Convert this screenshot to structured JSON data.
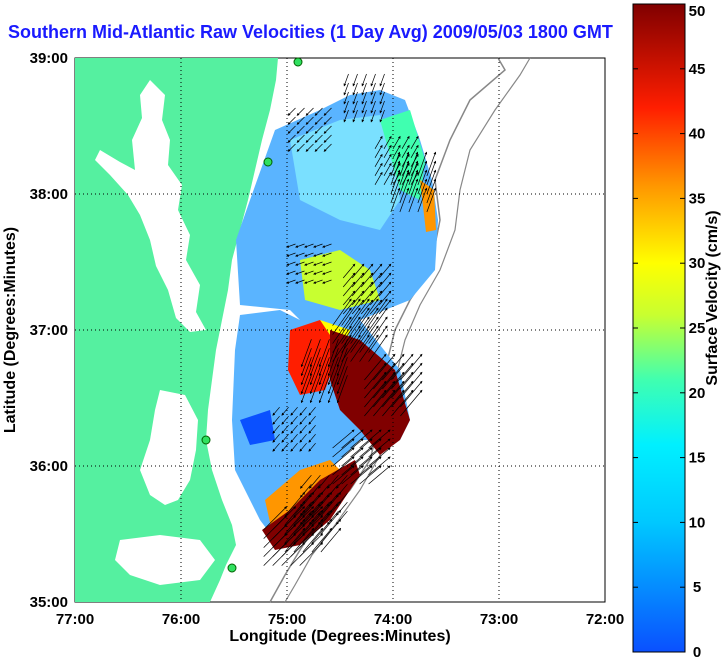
{
  "chart_data": {
    "type": "heatmap",
    "title": "Southern Mid-Atlantic Raw Velocities (1 Day Avg) 2009/05/03 1800 GMT",
    "xlabel": "Longitude (Degrees:Minutes)",
    "ylabel": "Latitude (Degrees:Minutes)",
    "colorbar_label": "Surface Velocity (cm/s)",
    "x_ticks": [
      "77:00",
      "76:00",
      "75:00",
      "74:00",
      "73:00",
      "72:00"
    ],
    "x_values": [
      -77,
      -76,
      -75,
      -74,
      -73,
      -72
    ],
    "y_ticks": [
      "39:00",
      "38:00",
      "37:00",
      "36:00",
      "35:00"
    ],
    "y_values": [
      39,
      38,
      37,
      36,
      35
    ],
    "xlim": [
      -77,
      -72
    ],
    "ylim": [
      35,
      39
    ],
    "colorbar_ticks": [
      50,
      45,
      40,
      35,
      30,
      25,
      20,
      15,
      10,
      5,
      0
    ],
    "colorbar_range": [
      0,
      50
    ],
    "grid": true,
    "colors": {
      "land": "#55f0a0",
      "title": "#1a1aff",
      "coast_line": "#888888"
    },
    "velocity_field": [
      {
        "lon": -74.75,
        "lat": 38.5,
        "speed": 8,
        "direction_deg": 225
      },
      {
        "lon": -74.25,
        "lat": 38.75,
        "speed": 12,
        "direction_deg": 200
      },
      {
        "lon": -74.0,
        "lat": 38.2,
        "speed": 15,
        "direction_deg": 30
      },
      {
        "lon": -73.85,
        "lat": 38.0,
        "speed": 35,
        "direction_deg": 20
      },
      {
        "lon": -74.75,
        "lat": 37.5,
        "speed": 6,
        "direction_deg": 250
      },
      {
        "lon": -74.3,
        "lat": 37.25,
        "speed": 22,
        "direction_deg": 40
      },
      {
        "lon": -74.4,
        "lat": 36.9,
        "speed": 48,
        "direction_deg": 35
      },
      {
        "lon": -74.6,
        "lat": 36.8,
        "speed": 42,
        "direction_deg": 200
      },
      {
        "lon": -74.1,
        "lat": 36.5,
        "speed": 50,
        "direction_deg": 40
      },
      {
        "lon": -74.9,
        "lat": 36.3,
        "speed": 8,
        "direction_deg": 220
      },
      {
        "lon": -74.6,
        "lat": 35.8,
        "speed": 20,
        "direction_deg": 220
      },
      {
        "lon": -74.85,
        "lat": 35.5,
        "speed": 45,
        "direction_deg": 40
      },
      {
        "lon": -75.05,
        "lat": 35.4,
        "speed": 48,
        "direction_deg": 45
      },
      {
        "lon": -74.4,
        "lat": 36.0,
        "speed": 40,
        "direction_deg": 50
      }
    ]
  }
}
